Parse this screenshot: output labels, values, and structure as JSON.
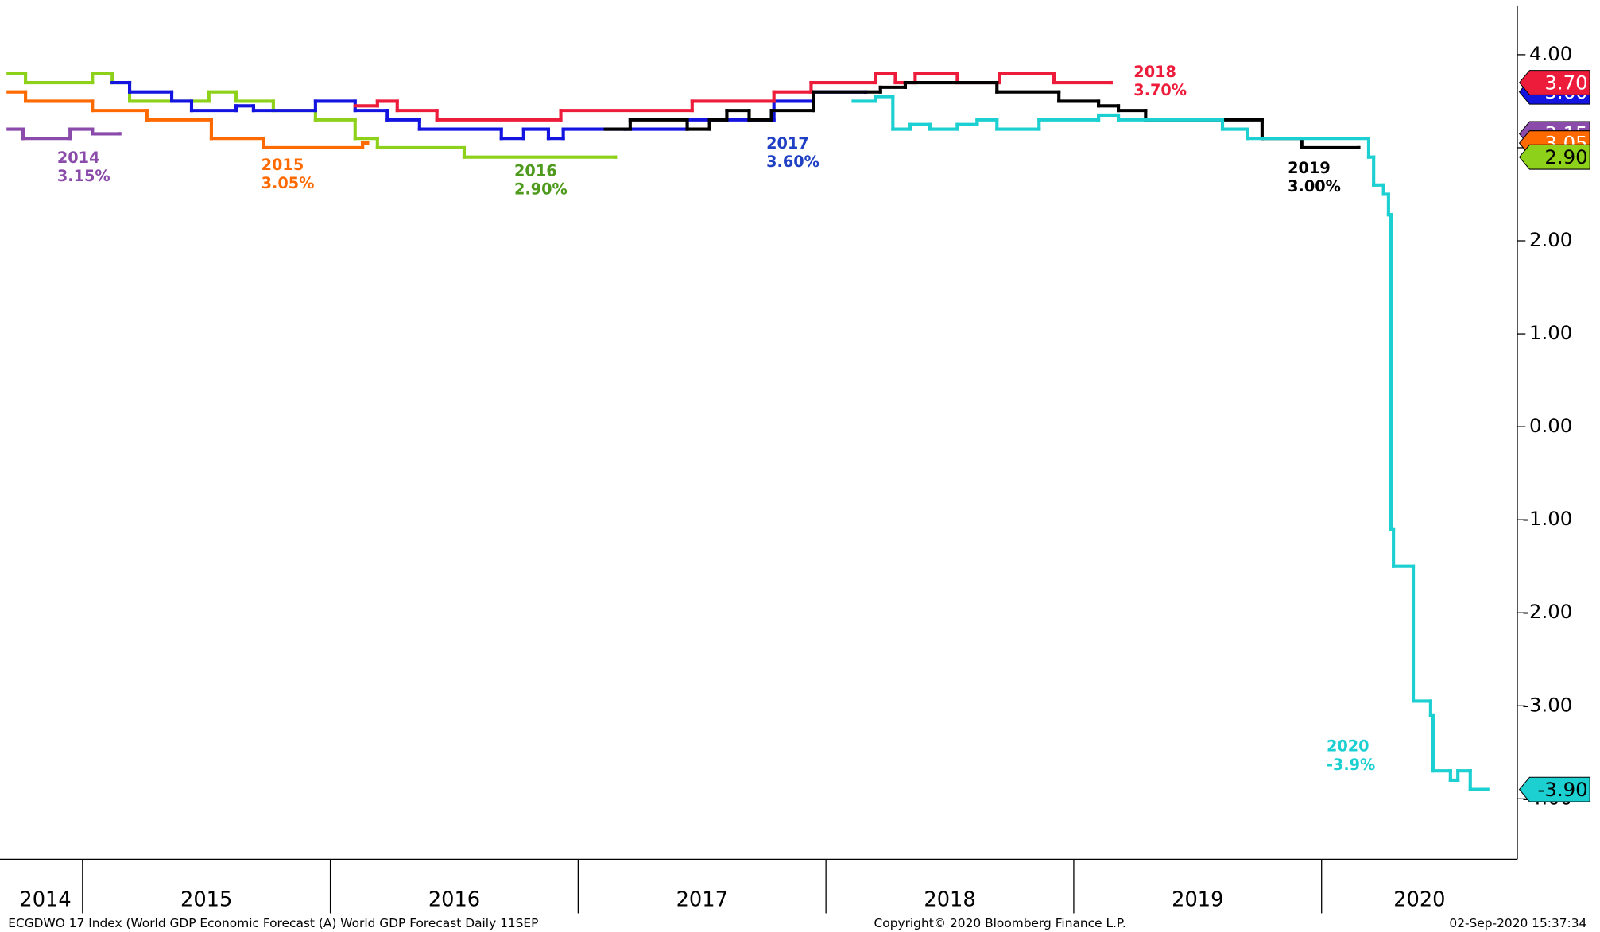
{
  "chart_data": {
    "type": "line",
    "step": true,
    "xlim": [
      2014.7,
      2020.79
    ],
    "xticks": [
      2015,
      2016,
      2017,
      2018,
      2019,
      2020
    ],
    "x_labels": [
      "2014",
      "2015",
      "2016",
      "2017",
      "2018",
      "2019",
      "2020"
    ],
    "ylim": [
      -4.65,
      4.53
    ],
    "yticks": [
      {
        "value": 4,
        "label": "4.00"
      },
      {
        "value": 3,
        "label": "3.00"
      },
      {
        "value": 2,
        "label": "2.00"
      },
      {
        "value": 1,
        "label": "1.00"
      },
      {
        "value": 0,
        "label": "0.00"
      },
      {
        "value": -1,
        "label": "-1.00"
      },
      {
        "value": -2,
        "label": "-2.00"
      },
      {
        "value": -3,
        "label": "-3.00"
      },
      {
        "value": -4,
        "label": "-4.00"
      }
    ],
    "y_axis_side": "right",
    "footer": [
      "ECGDWO 17 Index (World GDP Economic Forecast (A) World GDP Forecast  Daily 11SEP",
      "Copyright© 2020 Bloomberg Finance L.P.",
      "02-Sep-2020 15:37:34"
    ],
    "series": [
      {
        "name": "2014",
        "color": "#8b4bab",
        "label_color": "#8b4bab",
        "annotation": "3.15%",
        "last_label": "3.15",
        "badge_text_color": "#ffffff",
        "x": [
          2014.7,
          2014.76,
          2014.95,
          2015.04,
          2015.15
        ],
        "values": [
          3.2,
          3.1,
          3.2,
          3.15,
          3.15
        ]
      },
      {
        "name": "2015",
        "color": "#ff6a00",
        "label_color": "#ff6a00",
        "annotation": "3.05%",
        "last_label": "3.05",
        "badge_text_color": "#ffffff",
        "x": [
          2014.7,
          2014.77,
          2015.04,
          2015.26,
          2015.52,
          2015.73,
          2016.13,
          2016.15
        ],
        "values": [
          3.6,
          3.5,
          3.4,
          3.3,
          3.1,
          3.0,
          3.05,
          3.05
        ]
      },
      {
        "name": "2016",
        "color": "#8ed11a",
        "label_color": "#4e9a1c",
        "annotation": "2.90%",
        "last_label": "2.90",
        "badge_text_color": "#000000",
        "x": [
          2014.7,
          2014.77,
          2015.04,
          2015.12,
          2015.19,
          2015.51,
          2015.62,
          2015.77,
          2015.94,
          2016.1,
          2016.19,
          2016.54,
          2017.15
        ],
        "values": [
          3.8,
          3.7,
          3.8,
          3.7,
          3.5,
          3.6,
          3.5,
          3.4,
          3.3,
          3.1,
          3.0,
          2.9,
          2.9
        ]
      },
      {
        "name": "2017",
        "color": "#1414e0",
        "label_color": "#1f3fc4",
        "annotation": "3.60%",
        "last_label": "3.60",
        "badge_text_color": "#ffffff",
        "x": [
          2015.12,
          2015.19,
          2015.36,
          2015.44,
          2015.62,
          2015.69,
          2015.94,
          2016.1,
          2016.23,
          2016.36,
          2016.69,
          2016.78,
          2016.88,
          2016.94,
          2017.19,
          2017.44,
          2017.79,
          2017.95,
          2018.16
        ],
        "values": [
          3.7,
          3.6,
          3.5,
          3.4,
          3.45,
          3.4,
          3.5,
          3.4,
          3.3,
          3.2,
          3.1,
          3.2,
          3.1,
          3.2,
          3.2,
          3.3,
          3.5,
          3.6,
          3.6
        ]
      },
      {
        "name": "2018",
        "color": "#ee1c3b",
        "label_color": "#ee1c3b",
        "annotation": "3.70%",
        "last_label": "3.70",
        "badge_text_color": "#ffffff",
        "x": [
          2016.1,
          2016.19,
          2016.27,
          2016.43,
          2016.93,
          2017.46,
          2017.79,
          2017.94,
          2018.2,
          2018.28,
          2018.36,
          2018.53,
          2018.7,
          2018.92,
          2019.15
        ],
        "values": [
          3.45,
          3.5,
          3.4,
          3.3,
          3.4,
          3.5,
          3.6,
          3.7,
          3.8,
          3.7,
          3.8,
          3.7,
          3.8,
          3.7,
          3.7
        ]
      },
      {
        "name": "2019",
        "color": "#000000",
        "label_color": "#000000",
        "annotation": "3.00%",
        "x": [
          2017.11,
          2017.21,
          2017.44,
          2017.53,
          2017.6,
          2017.69,
          2017.78,
          2017.95,
          2018.22,
          2018.32,
          2018.69,
          2018.94,
          2019.1,
          2019.18,
          2019.29,
          2019.76,
          2019.92,
          2020.15
        ],
        "values": [
          3.2,
          3.3,
          3.2,
          3.3,
          3.4,
          3.3,
          3.4,
          3.6,
          3.65,
          3.7,
          3.6,
          3.5,
          3.45,
          3.4,
          3.3,
          3.1,
          3.0,
          3.0
        ]
      },
      {
        "name": "2020",
        "color": "#1ccfd1",
        "label_color": "#1ccfd1",
        "annotation": "-3.9%",
        "last_label": "-3.90",
        "badge_text_color": "#000000",
        "x": [
          2018.11,
          2018.2,
          2018.27,
          2018.34,
          2018.42,
          2018.53,
          2018.61,
          2018.69,
          2018.86,
          2019.1,
          2019.18,
          2019.6,
          2019.7,
          2020.19,
          2020.21,
          2020.25,
          2020.27,
          2020.28,
          2020.29,
          2020.37,
          2020.44,
          2020.45,
          2020.52,
          2020.55,
          2020.6,
          2020.67
        ],
        "values": [
          3.5,
          3.55,
          3.2,
          3.25,
          3.2,
          3.25,
          3.3,
          3.2,
          3.3,
          3.35,
          3.3,
          3.2,
          3.1,
          2.9,
          2.6,
          2.5,
          2.28,
          -1.1,
          -1.5,
          -2.95,
          -3.1,
          -3.7,
          -3.8,
          -3.7,
          -3.9,
          -3.9
        ]
      }
    ]
  }
}
